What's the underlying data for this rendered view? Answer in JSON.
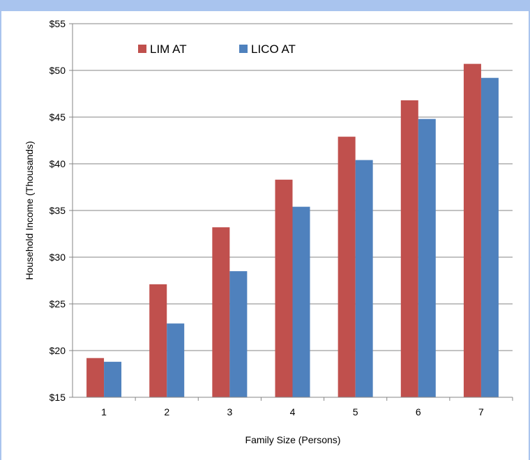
{
  "chart_data": {
    "type": "bar",
    "categories": [
      "1",
      "2",
      "3",
      "4",
      "5",
      "6",
      "7"
    ],
    "series": [
      {
        "name": "LIM AT",
        "color": "#c0504d",
        "values": [
          19.2,
          27.1,
          33.2,
          38.3,
          42.9,
          46.8,
          50.7
        ]
      },
      {
        "name": "LICO AT",
        "color": "#4f81bd",
        "values": [
          18.8,
          22.9,
          28.5,
          35.4,
          40.4,
          44.8,
          49.2
        ]
      }
    ],
    "xlabel": "Family Size (Persons)",
    "ylabel": "Household Income (Thousands)",
    "ylim": [
      15,
      55
    ],
    "yticks": [
      15,
      20,
      25,
      30,
      35,
      40,
      45,
      50,
      55
    ],
    "ytick_labels": [
      "$15",
      "$20",
      "$25",
      "$30",
      "$35",
      "$40",
      "$45",
      "$50",
      "$55"
    ],
    "grid": true,
    "legend_position": "top-left"
  }
}
